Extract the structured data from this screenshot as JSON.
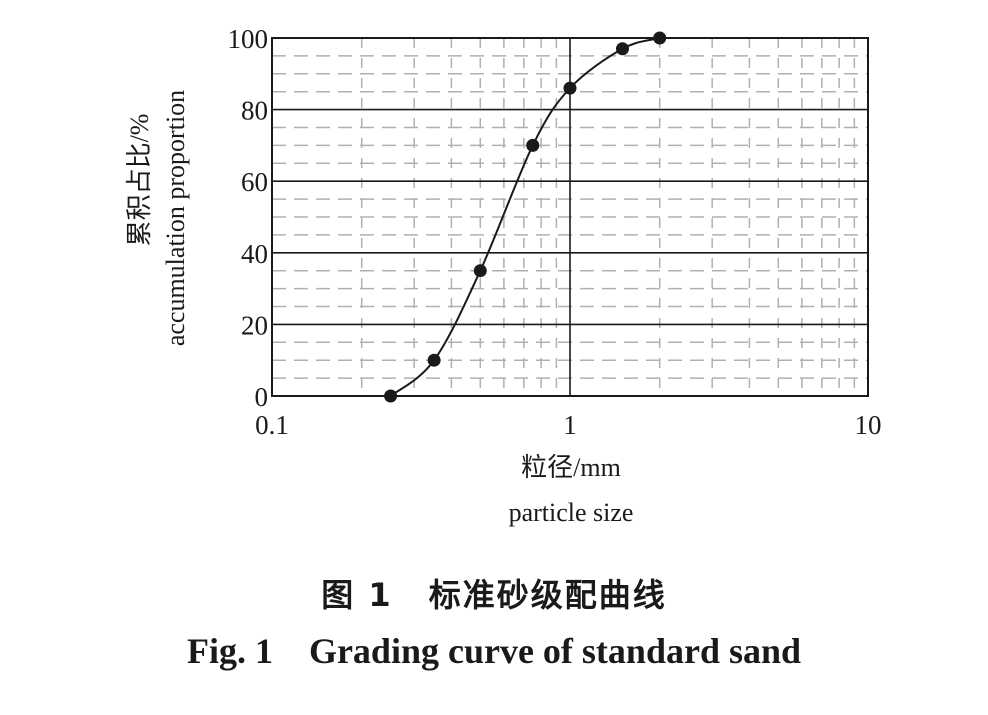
{
  "chart_data": {
    "type": "line",
    "x_scale": "log",
    "xlim": [
      0.1,
      10
    ],
    "ylim": [
      0,
      100
    ],
    "x_ticks": [
      "0.1",
      "1",
      "10"
    ],
    "y_ticks": [
      "0",
      "20",
      "40",
      "60",
      "80",
      "100"
    ],
    "xlabel_cn": "粒径/mm",
    "xlabel_en": "particle size",
    "ylabel_cn": "累积占比/%",
    "ylabel_en": "accumulation proportion",
    "grid": true,
    "series": [
      {
        "x": [
          0.25,
          0.35,
          0.5,
          0.75,
          1.0,
          1.5,
          2.0
        ],
        "y": [
          0,
          10,
          35,
          70,
          86,
          97,
          100
        ]
      }
    ]
  },
  "caption": {
    "cn_label": "图 1",
    "cn_title": "标准砂级配曲线",
    "en_label": "Fig. 1",
    "en_title": "Grading curve of standard sand"
  },
  "colors": {
    "ink": "#1a1a1a",
    "grid_minor": "#b0b0b0"
  }
}
